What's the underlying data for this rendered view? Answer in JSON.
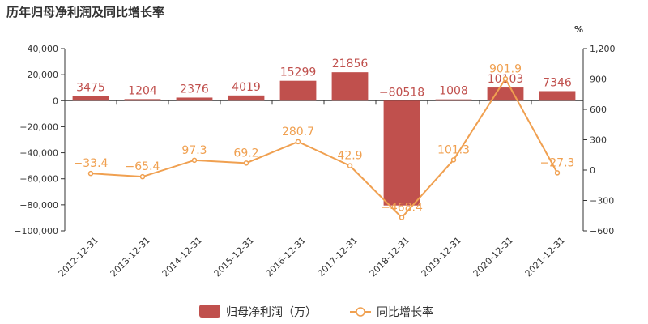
{
  "title": "历年归母净利润及同比增长率",
  "chart_data": {
    "type": "bar",
    "categories": [
      "2012-12-31",
      "2013-12-31",
      "2014-12-31",
      "2015-12-31",
      "2016-12-31",
      "2017-12-31",
      "2018-12-31",
      "2019-12-31",
      "2020-12-31",
      "2021-12-31"
    ],
    "series": [
      {
        "name": "归母净利润（万）",
        "type": "bar",
        "axis": "left",
        "color": "#c0504d",
        "values": [
          3475,
          1204,
          2376,
          4019,
          15299,
          21856,
          -80518,
          1008,
          10103,
          7346
        ],
        "labels": [
          "3475",
          "1204",
          "2376",
          "4019",
          "15299",
          "21856",
          "−80518",
          "1008",
          "10103",
          "7346"
        ]
      },
      {
        "name": "同比增长率",
        "type": "line",
        "axis": "right",
        "color": "#f0a050",
        "values": [
          -33.4,
          -65.4,
          97.3,
          69.2,
          280.7,
          42.9,
          -468.4,
          101.3,
          901.9,
          -27.3
        ],
        "labels": [
          "−33.4",
          "−65.4",
          "97.3",
          "69.2",
          "280.7",
          "42.9",
          "−468.4",
          "101.3",
          "901.9",
          "−27.3"
        ]
      }
    ],
    "y_left": {
      "range": [
        -100000,
        40000
      ],
      "ticks": [
        -100000,
        -80000,
        -60000,
        -40000,
        -20000,
        0,
        20000,
        40000
      ],
      "tick_labels": [
        "−100,000",
        "−80,000",
        "−60,000",
        "−40,000",
        "−20,000",
        "0",
        "20,000",
        "40,000"
      ]
    },
    "y_right": {
      "label": "%",
      "range": [
        -600,
        1200
      ],
      "ticks": [
        -600,
        -300,
        0,
        300,
        600,
        900,
        1200
      ],
      "tick_labels": [
        "−600",
        "−300",
        "0",
        "300",
        "600",
        "900",
        "1,200"
      ]
    },
    "grid": false,
    "legend_position": "bottom-center"
  }
}
